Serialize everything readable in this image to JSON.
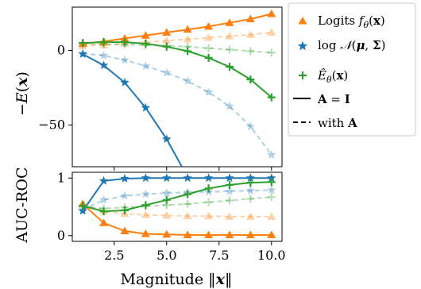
{
  "chart_data": [
    {
      "type": "line",
      "ylabel": "−E(x)",
      "ylim": [
        -78,
        29
      ],
      "xlim": [
        0.5,
        10.5
      ],
      "yticks": [
        0,
        -50
      ],
      "ytick_labels": [
        "0",
        "−50"
      ],
      "grid": false,
      "series": [
        {
          "name": "Logits fθ(x)",
          "variant": "A = I",
          "color": "#ff7f0e",
          "marker": "triangle",
          "x": [
            1,
            2,
            3,
            4,
            5,
            6,
            7,
            8,
            9,
            10
          ],
          "y": [
            4.5,
            6.0,
            8.0,
            10.0,
            12.0,
            14.0,
            16.0,
            18.5,
            21.0,
            24.5
          ]
        },
        {
          "name": "Logits fθ(x)",
          "variant": "with A",
          "color": "#ff7f0e",
          "marker": "triangle",
          "x": [
            1,
            2,
            3,
            4,
            5,
            6,
            7,
            8,
            9,
            10
          ],
          "y": [
            3.0,
            3.5,
            4.5,
            5.5,
            6.5,
            7.5,
            8.5,
            9.5,
            10.5,
            12.0
          ]
        },
        {
          "name": "log N(μ, Σ)",
          "variant": "A = I",
          "color": "#1f77b4",
          "marker": "star",
          "x": [
            1,
            2,
            3,
            4,
            5,
            6
          ],
          "y": [
            -2.5,
            -10.0,
            -21.5,
            -38.5,
            -59.5,
            -85.0
          ]
        },
        {
          "name": "log N(μ, Σ)",
          "variant": "with A",
          "color": "#1f77b4",
          "marker": "star",
          "x": [
            1,
            2,
            3,
            4,
            5,
            6,
            7,
            8,
            9,
            10
          ],
          "y": [
            -2.0,
            -3.5,
            -6.5,
            -10.5,
            -15.0,
            -20.5,
            -28.0,
            -37.5,
            -51.0,
            -70.0
          ]
        },
        {
          "name": "Êθ(x)",
          "variant": "A = I",
          "color": "#2ca02c",
          "marker": "plus",
          "x": [
            1,
            2,
            3,
            4,
            5,
            6,
            7,
            8,
            9,
            10
          ],
          "y": [
            5.0,
            5.5,
            5.5,
            4.5,
            2.5,
            -0.5,
            -5.0,
            -11.0,
            -19.5,
            -31.5
          ]
        },
        {
          "name": "Êθ(x)",
          "variant": "with A",
          "color": "#2ca02c",
          "marker": "plus",
          "x": [
            1,
            2,
            3,
            4,
            5,
            6,
            7,
            8,
            9,
            10
          ],
          "y": [
            4.0,
            4.0,
            4.0,
            3.5,
            3.0,
            2.5,
            1.5,
            0.5,
            -0.5,
            -1.5
          ]
        }
      ]
    },
    {
      "type": "line",
      "xlabel": "Magnitude ‖x‖",
      "ylabel": "AUC-ROC",
      "ylim": [
        -0.1,
        1.1
      ],
      "xlim": [
        0.5,
        10.5
      ],
      "yticks": [
        0,
        1
      ],
      "ytick_labels": [
        "0",
        "1"
      ],
      "xticks": [
        2.5,
        5.0,
        7.5,
        10.0
      ],
      "xtick_labels": [
        "2.5",
        "5.0",
        "7.5",
        "10.0"
      ],
      "grid": false,
      "series": [
        {
          "name": "Logits fθ(x)",
          "variant": "A = I",
          "color": "#ff7f0e",
          "marker": "triangle",
          "x": [
            1,
            2,
            3,
            4,
            5,
            6,
            7,
            8,
            9,
            10
          ],
          "y": [
            0.55,
            0.22,
            0.08,
            0.03,
            0.02,
            0.01,
            0.01,
            0.01,
            0.01,
            0.01
          ]
        },
        {
          "name": "Logits fθ(x)",
          "variant": "with A",
          "color": "#ff7f0e",
          "marker": "triangle",
          "x": [
            1,
            2,
            3,
            4,
            5,
            6,
            7,
            8,
            9,
            10
          ],
          "y": [
            0.55,
            0.42,
            0.38,
            0.36,
            0.35,
            0.34,
            0.34,
            0.33,
            0.33,
            0.33
          ]
        },
        {
          "name": "log N(μ, Σ)",
          "variant": "A = I",
          "color": "#1f77b4",
          "marker": "star",
          "x": [
            1,
            2,
            3,
            4,
            5,
            6,
            7,
            8,
            9,
            10
          ],
          "y": [
            0.43,
            0.95,
            0.99,
            1.0,
            1.0,
            1.0,
            1.0,
            1.0,
            1.0,
            1.0
          ]
        },
        {
          "name": "log N(μ, Σ)",
          "variant": "with A",
          "color": "#1f77b4",
          "marker": "star",
          "x": [
            1,
            2,
            3,
            4,
            5,
            6,
            7,
            8,
            9,
            10
          ],
          "y": [
            0.45,
            0.62,
            0.69,
            0.72,
            0.74,
            0.75,
            0.76,
            0.77,
            0.78,
            0.79
          ]
        },
        {
          "name": "Êθ(x)",
          "variant": "A = I",
          "color": "#2ca02c",
          "marker": "plus",
          "x": [
            1,
            2,
            3,
            4,
            5,
            6,
            7,
            8,
            9,
            10
          ],
          "y": [
            0.52,
            0.42,
            0.44,
            0.53,
            0.62,
            0.72,
            0.82,
            0.88,
            0.92,
            0.93
          ]
        },
        {
          "name": "Êθ(x)",
          "variant": "with A",
          "color": "#2ca02c",
          "marker": "plus",
          "x": [
            1,
            2,
            3,
            4,
            5,
            6,
            7,
            8,
            9,
            10
          ],
          "y": [
            0.5,
            0.47,
            0.49,
            0.51,
            0.53,
            0.55,
            0.58,
            0.61,
            0.64,
            0.67
          ]
        }
      ]
    }
  ],
  "legend": {
    "placement": "right",
    "entries": [
      {
        "label": "Logits fθ(x)",
        "color": "#ff7f0e",
        "marker": "triangle"
      },
      {
        "label": "log 𝒩(μ, Σ)",
        "color": "#1f77b4",
        "marker": "star"
      },
      {
        "label": "Êθ(x)",
        "color": "#2ca02c",
        "marker": "plus"
      },
      {
        "label": "A = I",
        "line": "solid"
      },
      {
        "label": "with A",
        "line": "dashed"
      }
    ]
  }
}
